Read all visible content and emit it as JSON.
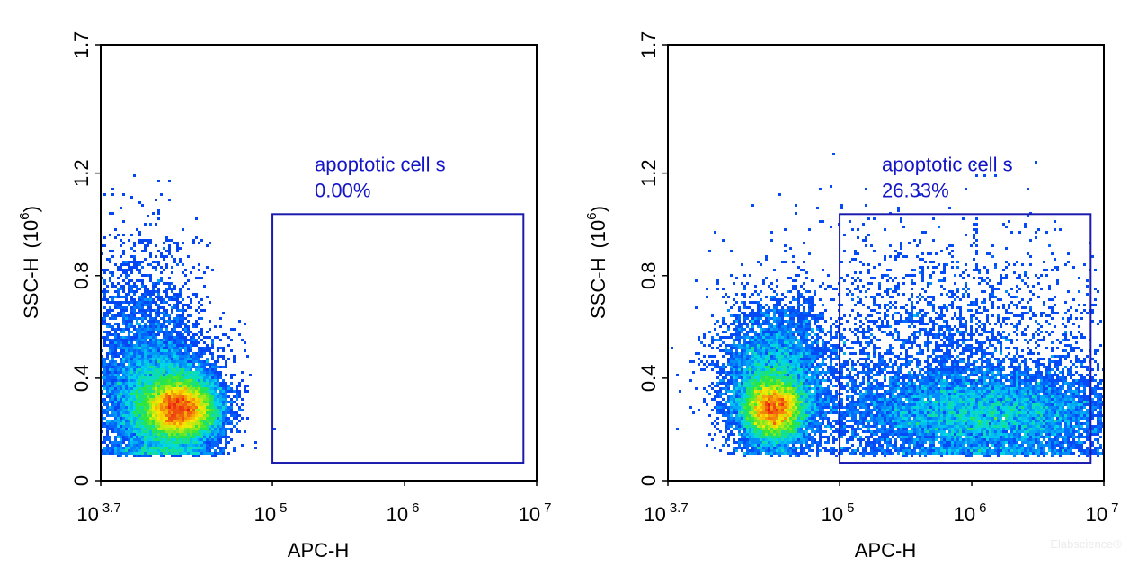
{
  "chart_data": [
    {
      "type": "scatter",
      "subtype": "flow-cytometry density dot plot",
      "xlabel": "APC-H",
      "ylabel": "SSC-H",
      "ylabel_unit": "(10",
      "ylabel_unit_exp": "6",
      "ylabel_unit_close": ")",
      "x_scale": "log10",
      "xlim_log10": [
        3.7,
        7
      ],
      "x_ticks": [
        {
          "base": "10",
          "exp": "3.7",
          "log10": 3.7
        },
        {
          "base": "10",
          "exp": "5",
          "log10": 5
        },
        {
          "base": "10",
          "exp": "6",
          "log10": 6
        },
        {
          "base": "10",
          "exp": "7",
          "log10": 7
        }
      ],
      "ylim": [
        0,
        1.7
      ],
      "y_ticks": [
        {
          "label": "0",
          "value": 0
        },
        {
          "label": "0.4",
          "value": 0.4
        },
        {
          "label": "0.8",
          "value": 0.8
        },
        {
          "label": "1.2",
          "value": 1.2
        },
        {
          "label": "1.7",
          "value": 1.7
        }
      ],
      "color_scale": "density: blue (low) to cyan, green, yellow, red (high)",
      "populations": [
        {
          "center_log10_x": 4.3,
          "center_y": 0.28,
          "spread_log10_x": 0.14,
          "spread_y": 0.06,
          "peak": "red",
          "share": 0.62
        },
        {
          "center_log10_x": 4.15,
          "center_y": 0.3,
          "spread_log10_x": 0.22,
          "spread_y": 0.13,
          "peak": "cyan",
          "share": 0.3
        },
        {
          "center_log10_x": 4.0,
          "center_y": 0.55,
          "spread_log10_x": 0.22,
          "spread_y": 0.2,
          "peak": "blue",
          "share": 0.08
        }
      ],
      "gate": {
        "x_log10": [
          5,
          6.9
        ],
        "y": [
          0.07,
          1.04
        ],
        "name": "apoptotic cell s",
        "percent": "0.00%"
      }
    },
    {
      "type": "scatter",
      "subtype": "flow-cytometry density dot plot",
      "xlabel": "APC-H",
      "ylabel": "SSC-H",
      "ylabel_unit": "(10",
      "ylabel_unit_exp": "6",
      "ylabel_unit_close": ")",
      "x_scale": "log10",
      "xlim_log10": [
        3.7,
        7
      ],
      "x_ticks": [
        {
          "base": "10",
          "exp": "3.7",
          "log10": 3.7
        },
        {
          "base": "10",
          "exp": "5",
          "log10": 5
        },
        {
          "base": "10",
          "exp": "6",
          "log10": 6
        },
        {
          "base": "10",
          "exp": "7",
          "log10": 7
        }
      ],
      "ylim": [
        0,
        1.7
      ],
      "y_ticks": [
        {
          "label": "0",
          "value": 0
        },
        {
          "label": "0.4",
          "value": 0.4
        },
        {
          "label": "0.8",
          "value": 0.8
        },
        {
          "label": "1.2",
          "value": 1.2
        },
        {
          "label": "1.7",
          "value": 1.7
        }
      ],
      "color_scale": "density: blue (low) to cyan, green, yellow, red (high)",
      "populations": [
        {
          "center_log10_x": 4.5,
          "center_y": 0.28,
          "spread_log10_x": 0.12,
          "spread_y": 0.06,
          "peak": "red",
          "share": 0.34
        },
        {
          "center_log10_x": 4.5,
          "center_y": 0.4,
          "spread_log10_x": 0.2,
          "spread_y": 0.14,
          "peak": "green",
          "share": 0.2
        },
        {
          "center_log10_x": 6.1,
          "center_y": 0.26,
          "spread_log10_x": 0.55,
          "spread_y": 0.09,
          "peak": "cyan",
          "share": 0.34
        },
        {
          "center_log10_x": 5.7,
          "center_y": 0.5,
          "spread_log10_x": 0.7,
          "spread_y": 0.22,
          "peak": "blue",
          "share": 0.12
        }
      ],
      "gate": {
        "x_log10": [
          5,
          6.9
        ],
        "y": [
          0.07,
          1.04
        ],
        "name": "apoptotic cell s",
        "percent": "26.33%"
      }
    }
  ],
  "watermark": "Elabscience®"
}
